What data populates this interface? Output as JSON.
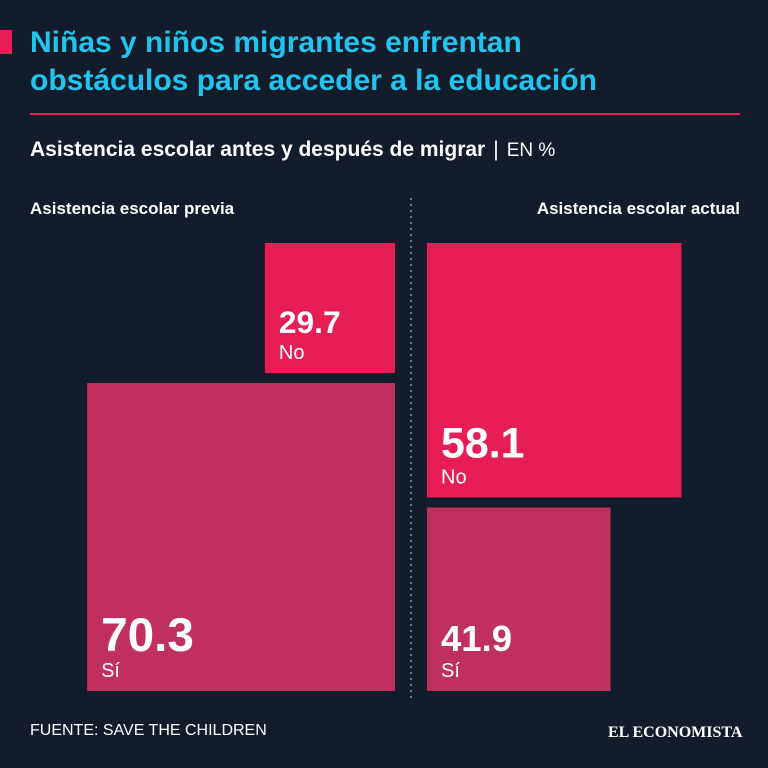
{
  "header": {
    "title": [
      "Niñas y niños migrantes enfrentan",
      "obstáculos para acceder a la educación"
    ],
    "subtitle": "Asistencia escolar antes y después de migrar",
    "unit": "EN %"
  },
  "chart_data": [
    {
      "type": "square",
      "title": "Asistencia escolar previa",
      "categories": [
        "No",
        "Sí"
      ],
      "values": [
        29.7,
        70.3
      ],
      "colors": [
        "#e61e55",
        "#c0305e"
      ]
    },
    {
      "type": "square",
      "title": "Asistencia escolar actual",
      "categories": [
        "No",
        "Sí"
      ],
      "values": [
        58.1,
        41.9
      ],
      "colors": [
        "#e61e55",
        "#c0305e"
      ]
    }
  ],
  "source": "FUENTE: SAVE THE CHILDREN",
  "brand": "EL ECONOMISTA"
}
